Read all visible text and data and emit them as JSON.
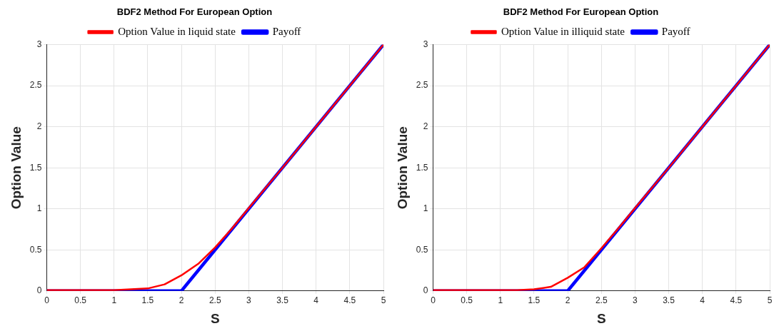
{
  "chart_data": [
    {
      "type": "line",
      "title": "BDF2 Method For European Option",
      "xlabel": "S",
      "ylabel": "Option Value",
      "xlim": [
        0,
        5
      ],
      "ylim": [
        0,
        3
      ],
      "xticks": [
        0,
        0.5,
        1,
        1.5,
        2,
        2.5,
        3,
        3.5,
        4,
        4.5,
        5
      ],
      "yticks": [
        0,
        0.5,
        1,
        1.5,
        2,
        2.5,
        3
      ],
      "grid": true,
      "legend": "top",
      "series": [
        {
          "name": "Payoff",
          "color": "#0000ff",
          "x": [
            0,
            2,
            5
          ],
          "values": [
            0,
            0,
            3
          ]
        },
        {
          "name": "Option Value in liquid state",
          "color": "#ff0000",
          "x": [
            0,
            1,
            1.25,
            1.5,
            1.75,
            2,
            2.25,
            2.5,
            2.75,
            3,
            3.5,
            4,
            5
          ],
          "values": [
            0.01,
            0.01,
            0.02,
            0.03,
            0.08,
            0.19,
            0.33,
            0.53,
            0.76,
            1.01,
            1.5,
            2,
            3
          ]
        }
      ]
    },
    {
      "type": "line",
      "title": "BDF2 Method For European Option",
      "xlabel": "S",
      "ylabel": "Option Value",
      "xlim": [
        0,
        5
      ],
      "ylim": [
        0,
        3
      ],
      "xticks": [
        0,
        0.5,
        1,
        1.5,
        2,
        2.5,
        3,
        3.5,
        4,
        4.5,
        5
      ],
      "yticks": [
        0,
        0.5,
        1,
        1.5,
        2,
        2.5,
        3
      ],
      "grid": true,
      "legend": "top",
      "series": [
        {
          "name": "Payoff",
          "color": "#0000ff",
          "x": [
            0,
            2,
            5
          ],
          "values": [
            0,
            0,
            3
          ]
        },
        {
          "name": "Option Value in illiquid state",
          "color": "#ff0000",
          "x": [
            0,
            1,
            1.25,
            1.5,
            1.75,
            2,
            2.25,
            2.5,
            2.75,
            3,
            3.5,
            4,
            5
          ],
          "values": [
            0.01,
            0.01,
            0.01,
            0.02,
            0.05,
            0.16,
            0.29,
            0.52,
            0.76,
            1.01,
            1.5,
            2,
            3
          ]
        }
      ]
    }
  ]
}
